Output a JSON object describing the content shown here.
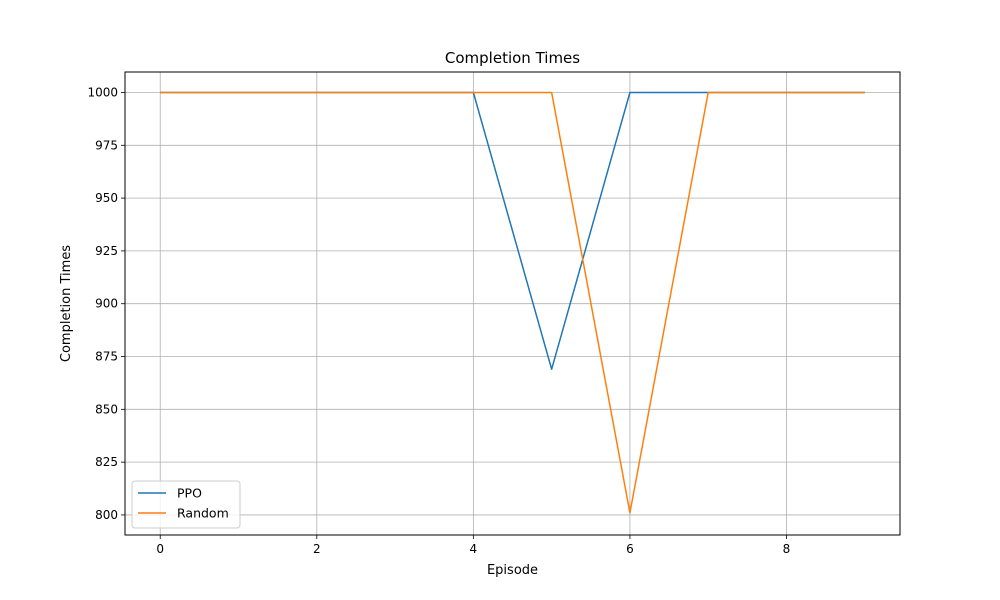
{
  "chart_data": {
    "type": "line",
    "title": "Completion Times",
    "xlabel": "Episode",
    "ylabel": "Completion Times",
    "xlim": [
      -0.45,
      9.45
    ],
    "ylim": [
      790.5,
      1009.7
    ],
    "x_ticks": [
      0,
      2,
      4,
      6,
      8
    ],
    "y_ticks": [
      800,
      825,
      850,
      875,
      900,
      925,
      950,
      975,
      1000
    ],
    "grid": true,
    "legend_position": "lower-left",
    "x": [
      0,
      1,
      2,
      3,
      4,
      5,
      6,
      7,
      8,
      9
    ],
    "series": [
      {
        "name": "PPO",
        "color": "#1f77b4",
        "values": [
          1000,
          1000,
          1000,
          1000,
          1000,
          869,
          1000,
          1000,
          1000,
          1000
        ]
      },
      {
        "name": "Random",
        "color": "#ff7f0e",
        "values": [
          1000,
          1000,
          1000,
          1000,
          1000,
          1000,
          801,
          1000,
          1000,
          1000
        ]
      }
    ]
  }
}
